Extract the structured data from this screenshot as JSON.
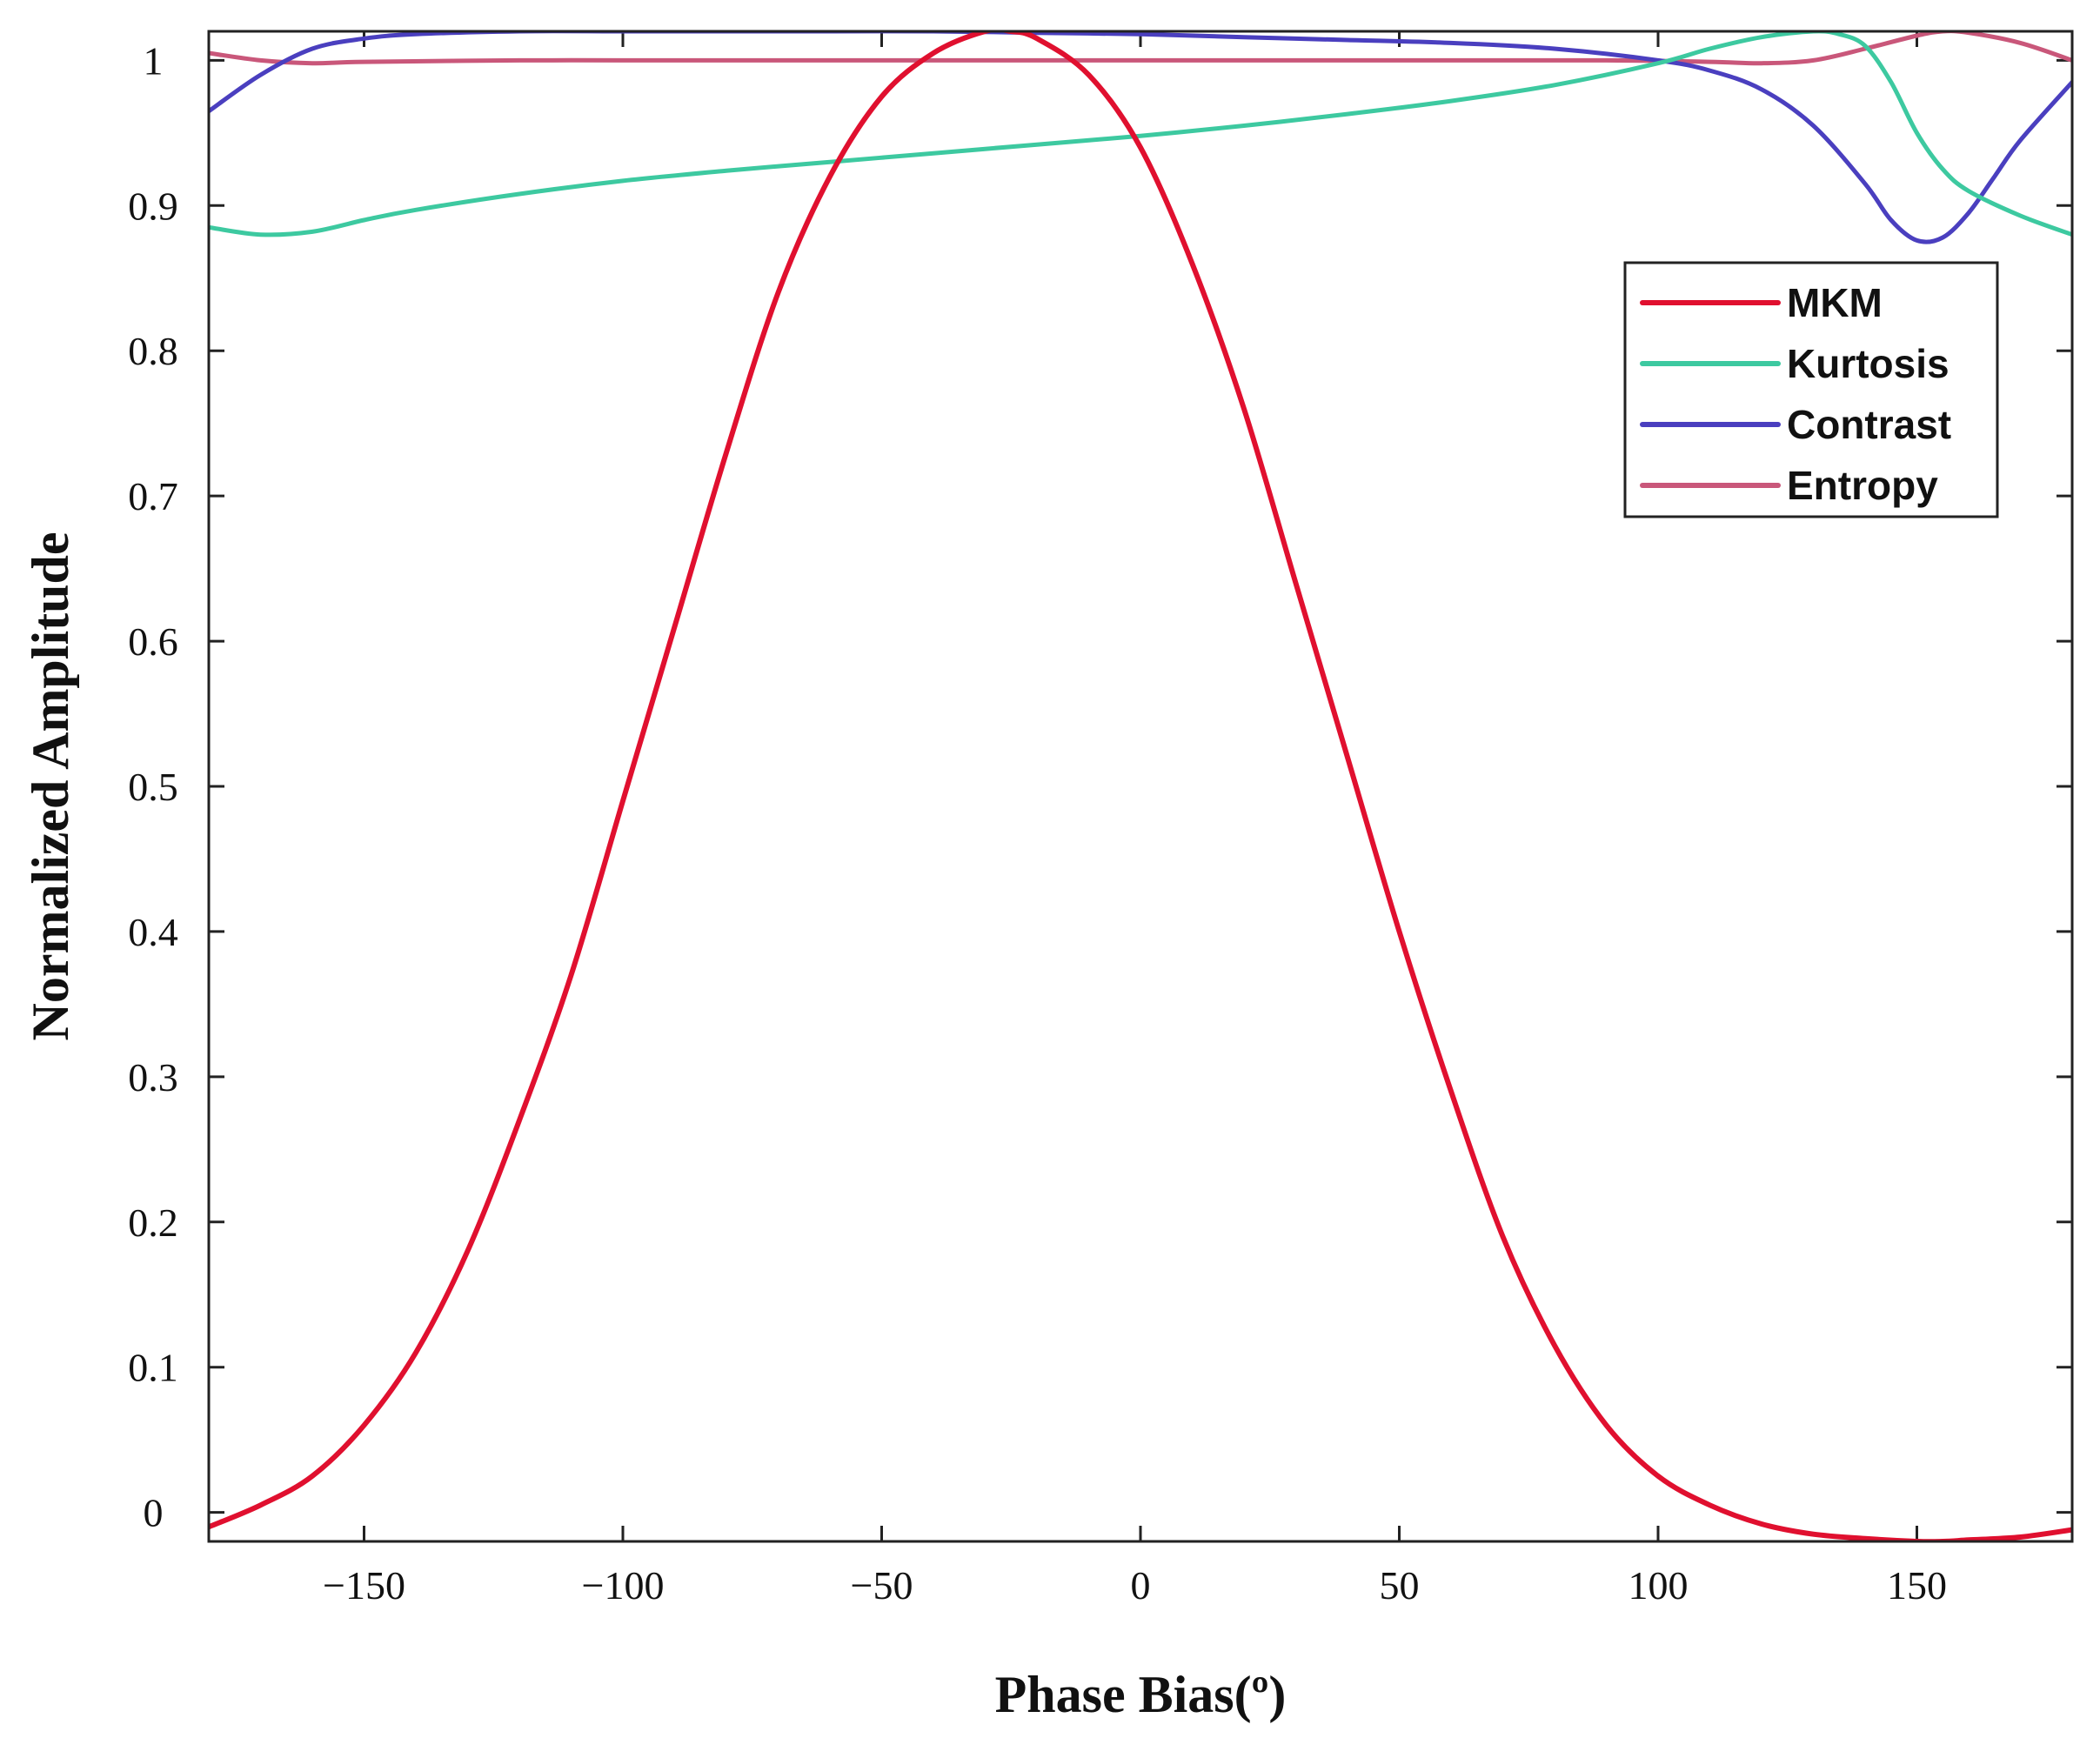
{
  "chart_data": {
    "type": "line",
    "title": "",
    "xlabel": "Phase Bias(º)",
    "ylabel": "Normalized Amplitude",
    "xlim": [
      -180,
      180
    ],
    "ylim": [
      -0.02,
      1.02
    ],
    "grid": false,
    "legend_position": "top-right",
    "x_ticks": [
      -150,
      -100,
      -50,
      0,
      50,
      100,
      150
    ],
    "x_tick_labels": [
      "−150",
      "−100",
      "−50",
      "0",
      "50",
      "100",
      "150"
    ],
    "y_ticks": [
      0,
      0.1,
      0.2,
      0.3,
      0.4,
      0.5,
      0.6,
      0.7,
      0.8,
      0.9,
      1
    ],
    "y_tick_labels": [
      "0",
      "0.1",
      "0.2",
      "0.3",
      "0.4",
      "0.5",
      "0.6",
      "0.7",
      "0.8",
      "0.9",
      "1"
    ],
    "series": [
      {
        "name": "MKM",
        "color": "#e0102f",
        "x": [
          -180,
          -170,
          -160,
          -150,
          -140,
          -130,
          -120,
          -110,
          -100,
          -90,
          -80,
          -70,
          -60,
          -50,
          -40,
          -30,
          -25,
          -20,
          -10,
          0,
          10,
          20,
          30,
          40,
          50,
          60,
          70,
          80,
          90,
          100,
          110,
          120,
          130,
          140,
          150,
          155,
          160,
          170,
          180
        ],
        "y": [
          -0.01,
          0.005,
          0.025,
          0.06,
          0.11,
          0.18,
          0.27,
          0.37,
          0.49,
          0.61,
          0.73,
          0.84,
          0.92,
          0.975,
          1.005,
          1.02,
          1.02,
          1.015,
          0.99,
          0.94,
          0.86,
          0.76,
          0.64,
          0.52,
          0.4,
          0.29,
          0.19,
          0.115,
          0.06,
          0.025,
          0.005,
          -0.008,
          -0.015,
          -0.018,
          -0.02,
          -0.02,
          -0.019,
          -0.017,
          -0.012
        ]
      },
      {
        "name": "Kurtosis",
        "color": "#3dc9a0",
        "x": [
          -180,
          -170,
          -160,
          -150,
          -140,
          -120,
          -100,
          -80,
          -60,
          -40,
          -20,
          0,
          20,
          40,
          60,
          80,
          100,
          110,
          120,
          130,
          135,
          140,
          145,
          150,
          155,
          160,
          170,
          180
        ],
        "y": [
          0.885,
          0.88,
          0.882,
          0.89,
          0.897,
          0.908,
          0.917,
          0.924,
          0.93,
          0.936,
          0.942,
          0.948,
          0.955,
          0.963,
          0.972,
          0.983,
          0.998,
          1.008,
          1.016,
          1.02,
          1.018,
          1.01,
          0.985,
          0.95,
          0.925,
          0.91,
          0.893,
          0.88
        ]
      },
      {
        "name": "Contrast",
        "color": "#4a3fbf",
        "x": [
          -180,
          -170,
          -160,
          -150,
          -140,
          -120,
          -100,
          -80,
          -60,
          -40,
          -20,
          0,
          20,
          40,
          60,
          80,
          100,
          110,
          120,
          130,
          140,
          145,
          150,
          155,
          160,
          165,
          170,
          180
        ],
        "y": [
          0.965,
          0.99,
          1.008,
          1.015,
          1.018,
          1.02,
          1.02,
          1.02,
          1.02,
          1.02,
          1.019,
          1.018,
          1.016,
          1.014,
          1.012,
          1.008,
          1.0,
          0.993,
          0.98,
          0.955,
          0.915,
          0.89,
          0.876,
          0.878,
          0.895,
          0.92,
          0.945,
          0.985
        ]
      },
      {
        "name": "Entropy",
        "color": "#c9577a",
        "x": [
          -180,
          -170,
          -160,
          -150,
          -120,
          -90,
          -60,
          -30,
          0,
          30,
          60,
          90,
          110,
          120,
          130,
          140,
          150,
          155,
          160,
          170,
          180
        ],
        "y": [
          1.005,
          1.0,
          0.998,
          0.999,
          1.0,
          1.0,
          1.0,
          1.0,
          1.0,
          1.0,
          1.0,
          1.0,
          0.999,
          0.998,
          1.0,
          1.008,
          1.017,
          1.02,
          1.019,
          1.012,
          1.0
        ]
      }
    ]
  }
}
